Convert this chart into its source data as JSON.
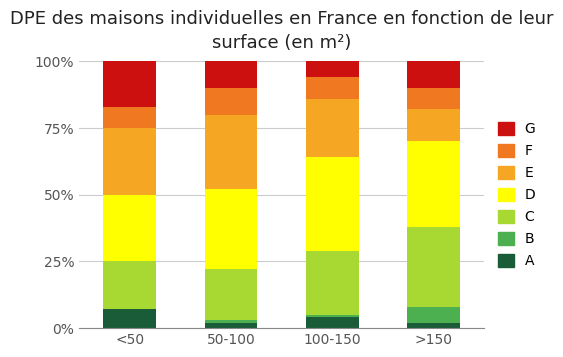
{
  "title": "DPE des maisons individuelles en France en fonction de leur\nsurface (en m²)",
  "categories": [
    "<50",
    "50-100",
    "100-150",
    ">150"
  ],
  "segments_heights": {
    "A": [
      0.07,
      0.02,
      0.04,
      0.02
    ],
    "B": [
      0.0,
      0.01,
      0.01,
      0.06
    ],
    "C": [
      0.18,
      0.19,
      0.24,
      0.3
    ],
    "D": [
      0.25,
      0.3,
      0.35,
      0.32
    ],
    "E": [
      0.25,
      0.28,
      0.22,
      0.12
    ],
    "F": [
      0.08,
      0.1,
      0.08,
      0.08
    ],
    "G": [
      0.17,
      0.1,
      0.06,
      0.1
    ]
  },
  "colors": {
    "A": "#1a5c38",
    "B": "#4caf50",
    "C": "#a8d932",
    "D": "#ffff00",
    "E": "#f5a623",
    "F": "#f07820",
    "G": "#cc1010"
  },
  "yticks": [
    0,
    0.25,
    0.5,
    0.75,
    1.0
  ],
  "ytick_labels": [
    "0%",
    "25%",
    "50%",
    "75%",
    "100%"
  ],
  "background_color": "#ffffff",
  "title_fontsize": 13,
  "tick_fontsize": 10,
  "legend_fontsize": 10
}
